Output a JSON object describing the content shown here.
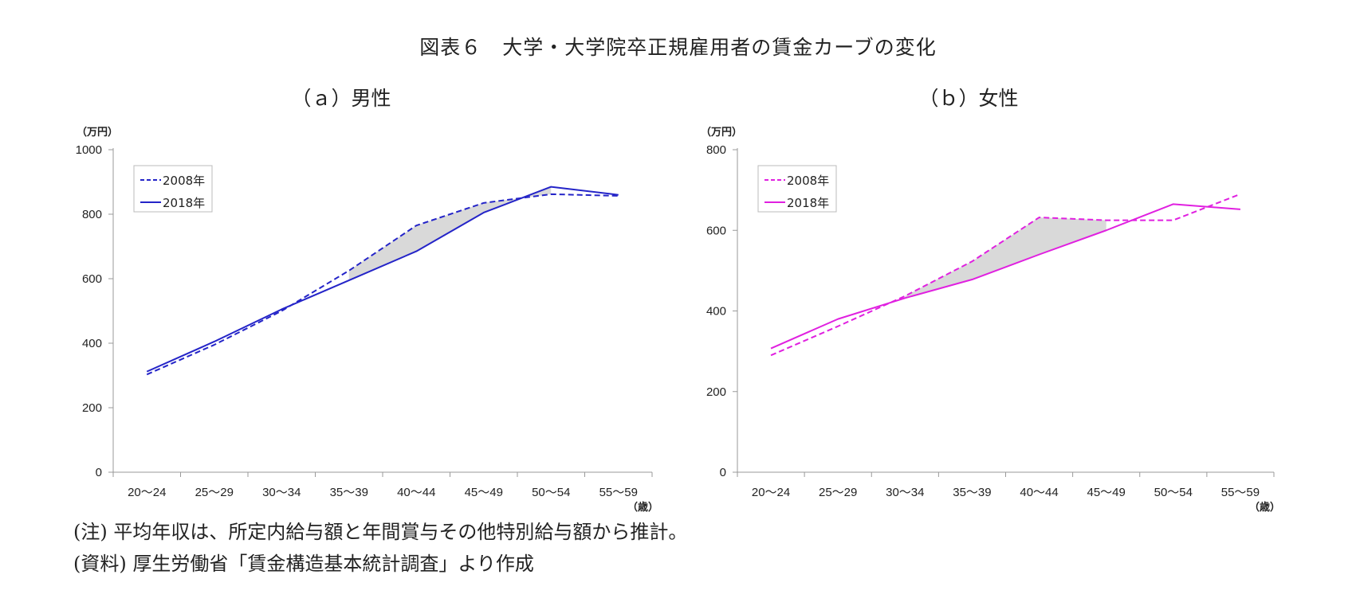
{
  "title": "図表６　大学・大学院卒正規雇用者の賃金カーブの変化",
  "notes": {
    "note1": "(注) 平均年収は、所定内給与額と年間賞与その他特別給与額から推計。",
    "note2": "(資料) 厚生労働省「賃金構造基本統計調査」より作成"
  },
  "chart_data": [
    {
      "type": "line",
      "title": "（ａ）男性",
      "y_unit": "（万円）",
      "x_unit": "（歳）",
      "categories": [
        "20～24",
        "25～29",
        "30～34",
        "35～39",
        "40～44",
        "45～49",
        "50～54",
        "55～59"
      ],
      "ylim": [
        0,
        1000
      ],
      "yticks": [
        "0",
        "200",
        "400",
        "600",
        "800",
        "1000"
      ],
      "legend_position": "top-left",
      "shaded_region": "between series 35～39 to 50～54",
      "color": "#2424c8",
      "series": [
        {
          "name": "2008年",
          "style": "dashed",
          "values": [
            303,
            395,
            500,
            625,
            765,
            835,
            862,
            857
          ]
        },
        {
          "name": "2018年",
          "style": "solid",
          "values": [
            312,
            405,
            505,
            595,
            685,
            805,
            885,
            860
          ]
        }
      ]
    },
    {
      "type": "line",
      "title": "（ｂ）女性",
      "y_unit": "（万円）",
      "x_unit": "（歳）",
      "categories": [
        "20～24",
        "25～29",
        "30～34",
        "35～39",
        "40～44",
        "45～49",
        "50～54",
        "55～59"
      ],
      "ylim": [
        0,
        800
      ],
      "yticks": [
        "0",
        "200",
        "400",
        "600",
        "800"
      ],
      "legend_position": "top-left",
      "shaded_region": "between series 30～34 to 45～49",
      "color": "#e020e0",
      "series": [
        {
          "name": "2008年",
          "style": "dashed",
          "values": [
            290,
            362,
            437,
            523,
            632,
            625,
            625,
            690
          ]
        },
        {
          "name": "2018年",
          "style": "solid",
          "values": [
            307,
            380,
            432,
            478,
            540,
            600,
            665,
            652
          ]
        }
      ]
    }
  ]
}
